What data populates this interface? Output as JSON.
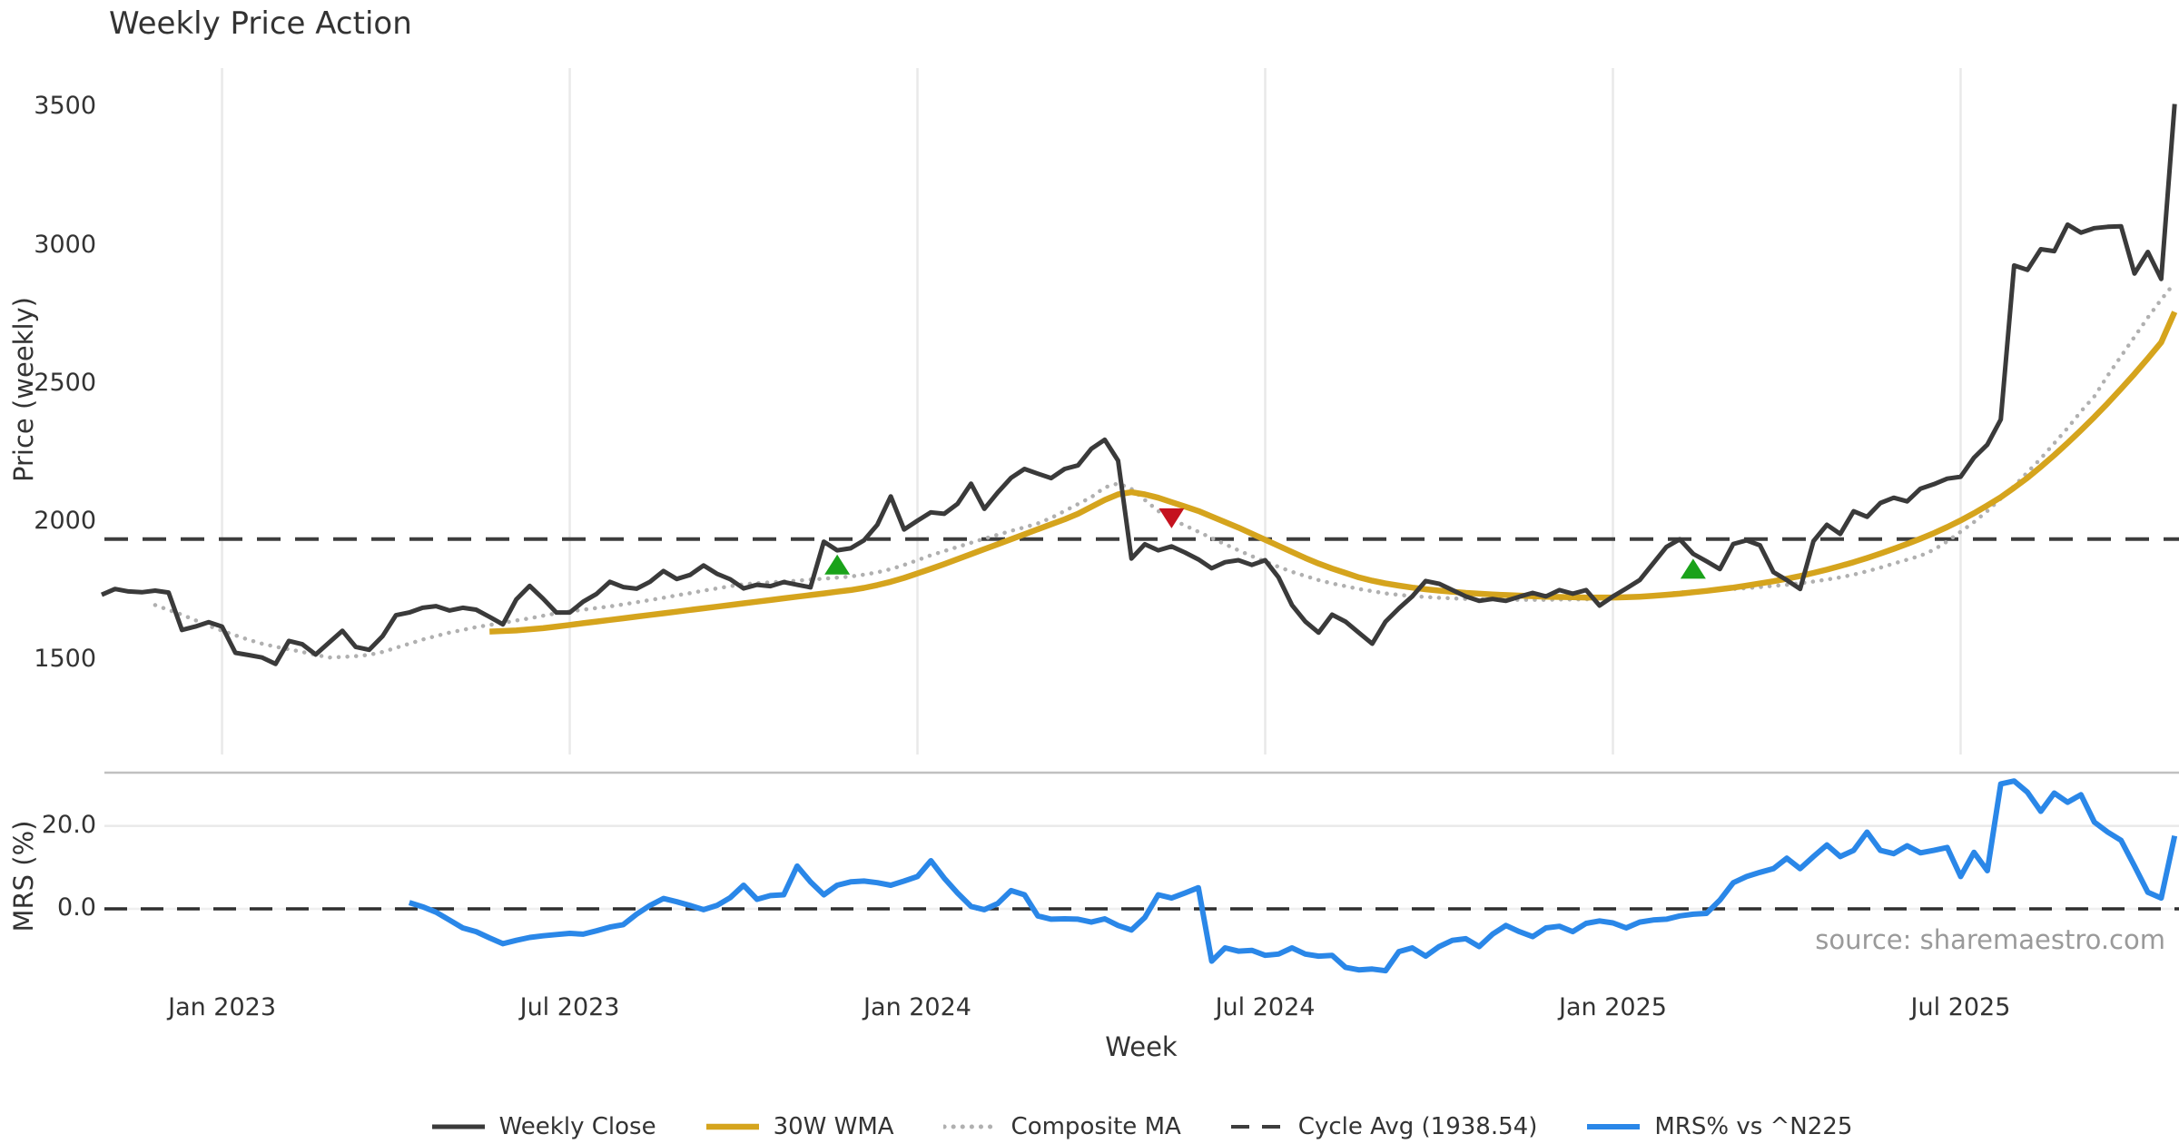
{
  "title": "Weekly Price Action",
  "source": "source: sharemaestro.com",
  "xlabel": "Week",
  "price_panel": {
    "ylabel": "Price (weekly)"
  },
  "mrs_panel": {
    "ylabel": "MRS (%)"
  },
  "x_tick_labels": [
    "Jan 2023",
    "Jul 2023",
    "Jan 2024",
    "Jul 2024",
    "Jan 2025",
    "Jul 2025"
  ],
  "legend": {
    "items": [
      {
        "label": "Weekly Close",
        "color": "#3a3a3a",
        "style": "solid",
        "width": 5
      },
      {
        "label": "30W WMA",
        "color": "#d5a41d",
        "style": "solid",
        "width": 6.5
      },
      {
        "label": "Composite MA",
        "color": "#b0b0b0",
        "style": "dotted",
        "width": 5
      },
      {
        "label": "Cycle Avg (1938.54)",
        "color": "#3d3d3d",
        "style": "dashed",
        "width": 4
      },
      {
        "label": "MRS% vs ^N225",
        "color": "#2a87e8",
        "style": "solid",
        "width": 6
      }
    ]
  },
  "chart_data": [
    {
      "type": "line",
      "panel": "price",
      "title": "Weekly Price Action",
      "xlabel": "Week",
      "ylabel": "Price (weekly)",
      "x_unit": "weekly index, week 0 = first data point (late Oct 2022)",
      "x_tick_weeks": [
        9,
        35,
        61,
        87,
        113,
        139
      ],
      "x_tick_labels": [
        "Jan 2023",
        "Jul 2023",
        "Jan 2024",
        "Jul 2024",
        "Jan 2025",
        "Jul 2025"
      ],
      "yticks": [
        1500,
        2000,
        2500,
        3000,
        3500
      ],
      "ylim": [
        1150,
        3560
      ],
      "grid": "vertical-only",
      "cycle_avg": 1938.54,
      "series": [
        {
          "name": "Weekly Close",
          "color": "#3a3a3a",
          "style": "solid",
          "start_week": 0,
          "values": [
            1737,
            1758,
            1749,
            1746,
            1752,
            1745,
            1610,
            1622,
            1638,
            1622,
            1527,
            1519,
            1510,
            1487,
            1570,
            1558,
            1521,
            1564,
            1607,
            1548,
            1538,
            1587,
            1663,
            1673,
            1690,
            1696,
            1680,
            1690,
            1683,
            1657,
            1630,
            1720,
            1769,
            1723,
            1673,
            1673,
            1712,
            1740,
            1784,
            1765,
            1759,
            1784,
            1823,
            1794,
            1809,
            1843,
            1813,
            1793,
            1760,
            1773,
            1768,
            1783,
            1773,
            1764,
            1929,
            1898,
            1905,
            1934,
            1990,
            2093,
            1973,
            2005,
            2035,
            2030,
            2066,
            2139,
            2048,
            2107,
            2160,
            2192,
            2175,
            2159,
            2192,
            2205,
            2265,
            2298,
            2222,
            1868,
            1920,
            1898,
            1912,
            1890,
            1865,
            1833,
            1855,
            1862,
            1845,
            1862,
            1800,
            1700,
            1640,
            1600,
            1665,
            1640,
            1600,
            1560,
            1640,
            1688,
            1731,
            1787,
            1777,
            1754,
            1731,
            1715,
            1722,
            1715,
            1730,
            1744,
            1731,
            1754,
            1741,
            1754,
            1698,
            1731,
            1760,
            1790,
            1850,
            1910,
            1938,
            1885,
            1858,
            1830,
            1921,
            1934,
            1916,
            1819,
            1790,
            1758,
            1931,
            1990,
            1957,
            2039,
            2019,
            2069,
            2088,
            2075,
            2121,
            2137,
            2157,
            2164,
            2233,
            2280,
            2371,
            2928,
            2912,
            2987,
            2980,
            3076,
            3047,
            3063,
            3068,
            3070,
            2899,
            2977,
            2879,
            3512
          ]
        },
        {
          "name": "30W WMA",
          "color": "#d5a41d",
          "style": "solid",
          "start_week": 29,
          "values": [
            1604,
            1606,
            1608,
            1612,
            1616,
            1622,
            1628,
            1634,
            1640,
            1646,
            1652,
            1658,
            1664,
            1670,
            1676,
            1682,
            1688,
            1694,
            1700,
            1706,
            1712,
            1718,
            1724,
            1730,
            1736,
            1742,
            1748,
            1754,
            1762,
            1772,
            1784,
            1798,
            1814,
            1831,
            1848,
            1866,
            1884,
            1902,
            1920,
            1938,
            1956,
            1974,
            1992,
            2010,
            2030,
            2055,
            2080,
            2100,
            2108,
            2100,
            2088,
            2072,
            2056,
            2040,
            2020,
            2000,
            1980,
            1958,
            1936,
            1914,
            1892,
            1870,
            1850,
            1832,
            1816,
            1800,
            1788,
            1778,
            1770,
            1763,
            1757,
            1752,
            1748,
            1744,
            1741,
            1738,
            1736,
            1734,
            1732,
            1730,
            1729,
            1728,
            1727,
            1727,
            1727,
            1728,
            1730,
            1733,
            1737,
            1741,
            1746,
            1751,
            1757,
            1763,
            1770,
            1778,
            1786,
            1795,
            1805,
            1816,
            1828,
            1841,
            1855,
            1870,
            1886,
            1903,
            1921,
            1940,
            1960,
            1982,
            2006,
            2032,
            2060,
            2090,
            2124,
            2160,
            2200,
            2242,
            2286,
            2332,
            2380,
            2430,
            2482,
            2536,
            2592,
            2650,
            2760
          ]
        },
        {
          "name": "Composite MA",
          "color": "#b0b0b0",
          "style": "dotted",
          "start_week": 4,
          "values": [
            1700,
            1682,
            1665,
            1645,
            1625,
            1607,
            1590,
            1574,
            1560,
            1549,
            1540,
            1530,
            1520,
            1510,
            1512,
            1515,
            1520,
            1530,
            1545,
            1560,
            1575,
            1588,
            1600,
            1610,
            1620,
            1628,
            1635,
            1644,
            1652,
            1661,
            1670,
            1677,
            1683,
            1689,
            1695,
            1702,
            1710,
            1718,
            1726,
            1735,
            1743,
            1752,
            1760,
            1768,
            1775,
            1779,
            1782,
            1785,
            1788,
            1792,
            1795,
            1799,
            1803,
            1810,
            1818,
            1830,
            1845,
            1862,
            1880,
            1895,
            1910,
            1925,
            1940,
            1954,
            1968,
            1981,
            1995,
            2015,
            2040,
            2065,
            2090,
            2125,
            2140,
            2120,
            2080,
            2040,
            2010,
            1988,
            1965,
            1942,
            1920,
            1898,
            1877,
            1857,
            1838,
            1820,
            1805,
            1790,
            1778,
            1768,
            1758,
            1750,
            1742,
            1737,
            1732,
            1729,
            1726,
            1724,
            1722,
            1721,
            1720,
            1719,
            1719,
            1719,
            1719,
            1720,
            1720,
            1721,
            1722,
            1724,
            1727,
            1731,
            1735,
            1740,
            1745,
            1749,
            1752,
            1755,
            1758,
            1761,
            1765,
            1769,
            1773,
            1779,
            1785,
            1792,
            1800,
            1810,
            1822,
            1835,
            1850,
            1864,
            1878,
            1900,
            1930,
            1965,
            2000,
            2040,
            2085,
            2130,
            2180,
            2230,
            2285,
            2340,
            2400,
            2455,
            2530,
            2600,
            2670,
            2740,
            2805,
            2865
          ]
        },
        {
          "name": "Cycle Avg (1938.54)",
          "color": "#3d3d3d",
          "style": "dashed",
          "constant_value": 1938.54
        }
      ],
      "markers": [
        {
          "shape": "triangle-up",
          "meaning": "buy-signal",
          "color": "#1aa21a",
          "week": 55,
          "price": 1843
        },
        {
          "shape": "triangle-down",
          "meaning": "sell-signal",
          "color": "#c5121f",
          "week": 80,
          "price": 2017
        },
        {
          "shape": "triangle-up",
          "meaning": "buy-signal",
          "color": "#1aa21a",
          "week": 119,
          "price": 1828
        }
      ]
    },
    {
      "type": "line",
      "panel": "mrs",
      "ylabel": "MRS (%)",
      "yticks": [
        0.0,
        20.0
      ],
      "ytick_labels": [
        "0.0",
        "20.0"
      ],
      "ylim": [
        -18,
        33
      ],
      "zero_line": "dashed-black",
      "grid": "horizontal-only",
      "series": [
        {
          "name": "MRS% vs ^N225",
          "color": "#2a87e8",
          "style": "solid",
          "start_week": 23,
          "values": [
            1.5,
            0.5,
            -0.8,
            -2.7,
            -4.6,
            -5.5,
            -7.0,
            -8.4,
            -7.6,
            -6.9,
            -6.5,
            -6.2,
            -5.9,
            -6.1,
            -5.3,
            -4.4,
            -3.8,
            -1.3,
            0.8,
            2.5,
            1.7,
            0.8,
            -0.2,
            0.8,
            2.7,
            5.7,
            2.3,
            3.2,
            3.4,
            10.3,
            6.5,
            3.4,
            5.7,
            6.5,
            6.7,
            6.3,
            5.7,
            6.7,
            7.8,
            11.6,
            7.4,
            3.8,
            0.6,
            -0.2,
            1.3,
            4.4,
            3.4,
            -1.7,
            -2.5,
            -2.4,
            -2.5,
            -3.2,
            -2.4,
            -4.0,
            -5.1,
            -2.1,
            3.4,
            2.6,
            3.8,
            5.1,
            -12.6,
            -9.4,
            -10.2,
            -10.0,
            -11.2,
            -10.9,
            -9.4,
            -10.9,
            -11.4,
            -11.2,
            -14.1,
            -14.7,
            -14.5,
            -14.9,
            -10.3,
            -9.4,
            -11.4,
            -9.1,
            -7.6,
            -7.2,
            -9.1,
            -6.1,
            -4.0,
            -5.5,
            -6.7,
            -4.6,
            -4.2,
            -5.5,
            -3.5,
            -2.9,
            -3.4,
            -4.6,
            -3.2,
            -2.7,
            -2.5,
            -1.7,
            -1.3,
            -1.1,
            2.1,
            6.3,
            7.8,
            8.8,
            9.7,
            12.2,
            9.7,
            12.6,
            15.4,
            12.6,
            14.1,
            18.5,
            14.1,
            13.3,
            15.2,
            13.5,
            14.1,
            14.8,
            7.8,
            13.6,
            9.2,
            30.1,
            30.8,
            28.1,
            23.5,
            27.9,
            25.7,
            27.5,
            20.9,
            18.5,
            16.5,
            10.3,
            4.0,
            2.6,
            17.6
          ]
        }
      ]
    }
  ]
}
